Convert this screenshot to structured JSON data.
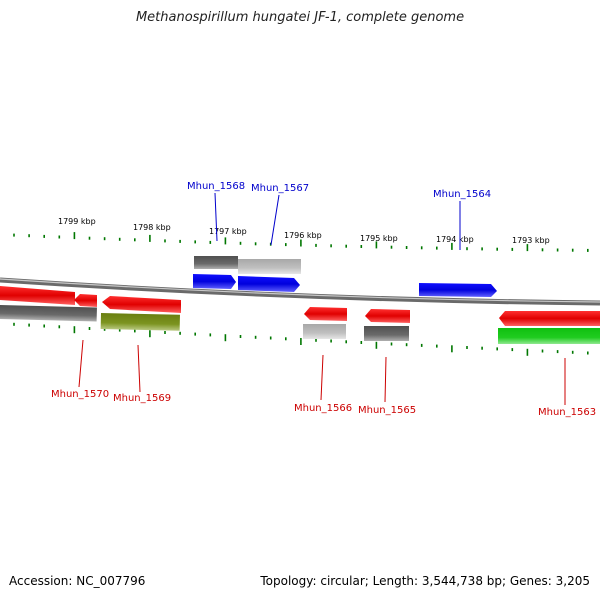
{
  "title": "Methanospirillum hungatei JF-1, complete genome",
  "footer": {
    "accession": "Accession: NC_007796",
    "topology": "Topology: circular; Length: 3,544,738 bp; Genes: 3,205"
  },
  "ticks": [
    "1799 kbp",
    "1798 kbp",
    "1797 kbp",
    "1796 kbp",
    "1795 kbp",
    "1794 kbp",
    "1793 kbp"
  ],
  "genes": [
    {
      "label": "Mhun_1568",
      "color": "#0000cc"
    },
    {
      "label": "Mhun_1567",
      "color": "#0000cc"
    },
    {
      "label": "Mhun_1564",
      "color": "#0000cc"
    },
    {
      "label": "Mhun_1570",
      "color": "#cc0000"
    },
    {
      "label": "Mhun_1569",
      "color": "#cc0000"
    },
    {
      "label": "Mhun_1566",
      "color": "#cc0000"
    },
    {
      "label": "Mhun_1565",
      "color": "#cc0000"
    },
    {
      "label": "Mhun_1563",
      "color": "#cc0000"
    }
  ]
}
